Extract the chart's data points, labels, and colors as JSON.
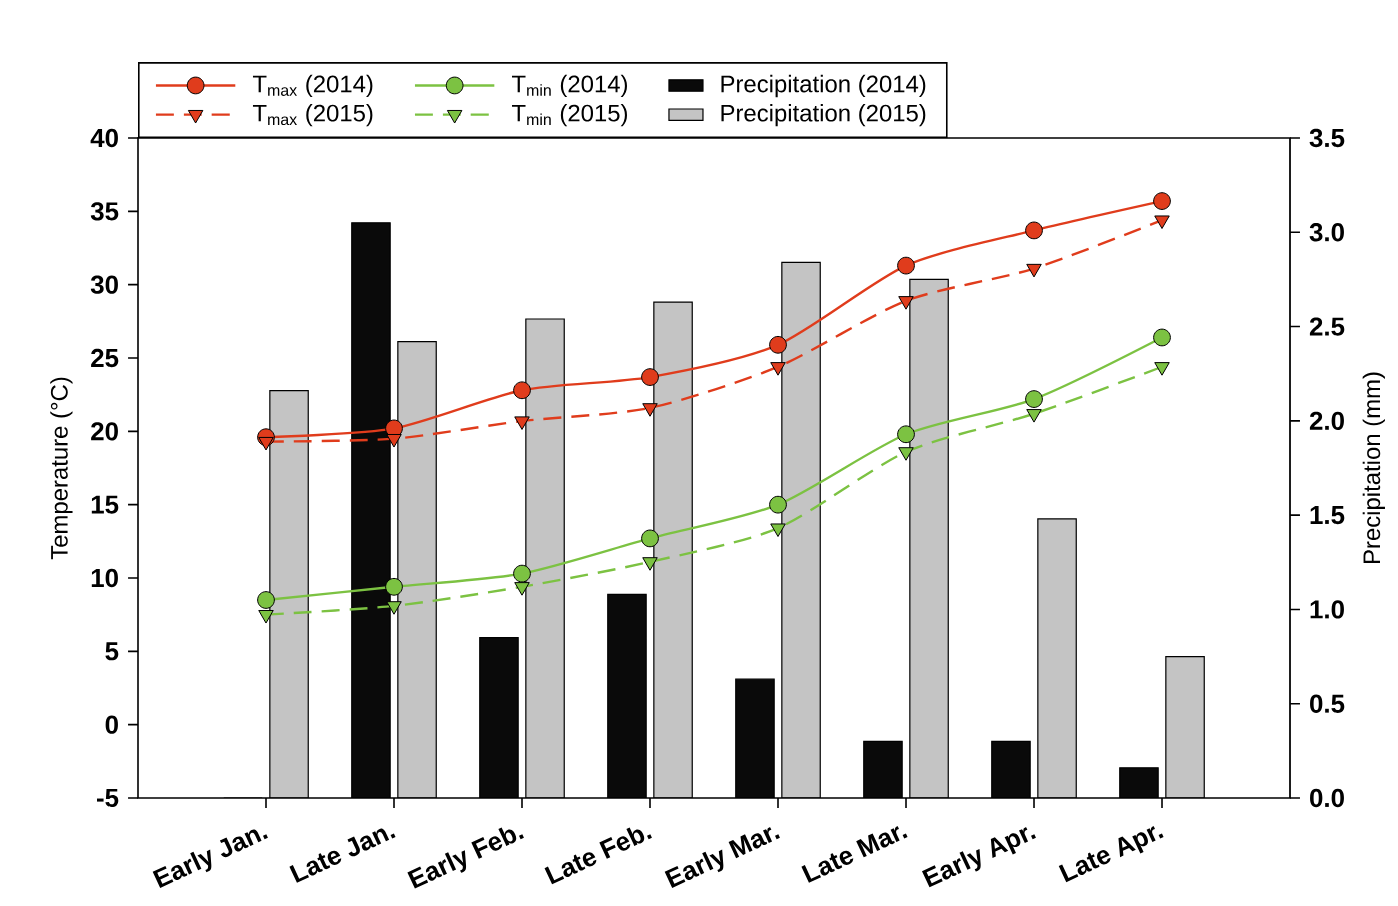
{
  "chart_data": {
    "type": "line",
    "categories": [
      "Early Jan.",
      "Late Jan.",
      "Early Feb.",
      "Late Feb.",
      "Early Mar.",
      "Late Mar.",
      "Early Apr.",
      "Late Apr."
    ],
    "ylabel": "Temperature (°C)",
    "y2label": "Precipitation (mm)",
    "ylim": [
      -5,
      40
    ],
    "yticks": [
      -5,
      0,
      5,
      10,
      15,
      20,
      25,
      30,
      35,
      40
    ],
    "y2lim": [
      0,
      3.5
    ],
    "y2ticks": [
      {
        "value": 0,
        "label": "0.0"
      },
      {
        "value": 0.5,
        "label": "0.5"
      },
      {
        "value": 1,
        "label": "1.0"
      },
      {
        "value": 1.5,
        "label": "1.5"
      },
      {
        "value": 2,
        "label": "2.0"
      },
      {
        "value": 2.5,
        "label": "2.5"
      },
      {
        "value": 3,
        "label": "3.0"
      },
      {
        "value": 3.5,
        "label": "3.5"
      }
    ],
    "legend": "top",
    "grid": false,
    "series": [
      {
        "name": "T$_{max}$ (2014)",
        "color": "#e03c1c",
        "marker": "circle",
        "line_style": "solid",
        "values": [
          19.6,
          20.2,
          22.8,
          23.7,
          25.9,
          31.3,
          33.7,
          35.7
        ]
      },
      {
        "name": "T$_{max}$ (2015)",
        "color": "#e03c1c",
        "marker": "triangle",
        "line_style": "dashed",
        "values": [
          19.3,
          19.5,
          20.7,
          21.6,
          24.4,
          28.9,
          31.1,
          34.4
        ]
      },
      {
        "name": "T$_{min}$ (2014)",
        "color": "#7cc242",
        "marker": "circle",
        "line_style": "solid",
        "values": [
          8.5,
          9.4,
          10.3,
          12.7,
          15.0,
          19.8,
          22.2,
          26.4
        ]
      },
      {
        "name": "T$_{min}$ (2015)",
        "color": "#7cc242",
        "marker": "triangle",
        "line_style": "dashed",
        "values": [
          7.5,
          8.1,
          9.4,
          11.1,
          13.4,
          18.6,
          21.2,
          24.4
        ]
      },
      {
        "name": "Precipitation (2014)",
        "type": "bar",
        "axis": "y2",
        "color": "#0a0a0a",
        "values": [
          0,
          3.05,
          0.85,
          1.08,
          0.63,
          0.3,
          0.3,
          0.16
        ]
      },
      {
        "name": "Precipitation (2015)",
        "type": "bar",
        "axis": "y2",
        "color": "#c4c4c4",
        "values": [
          2.16,
          2.42,
          2.54,
          2.63,
          2.84,
          2.75,
          1.48,
          0.75
        ]
      }
    ]
  }
}
